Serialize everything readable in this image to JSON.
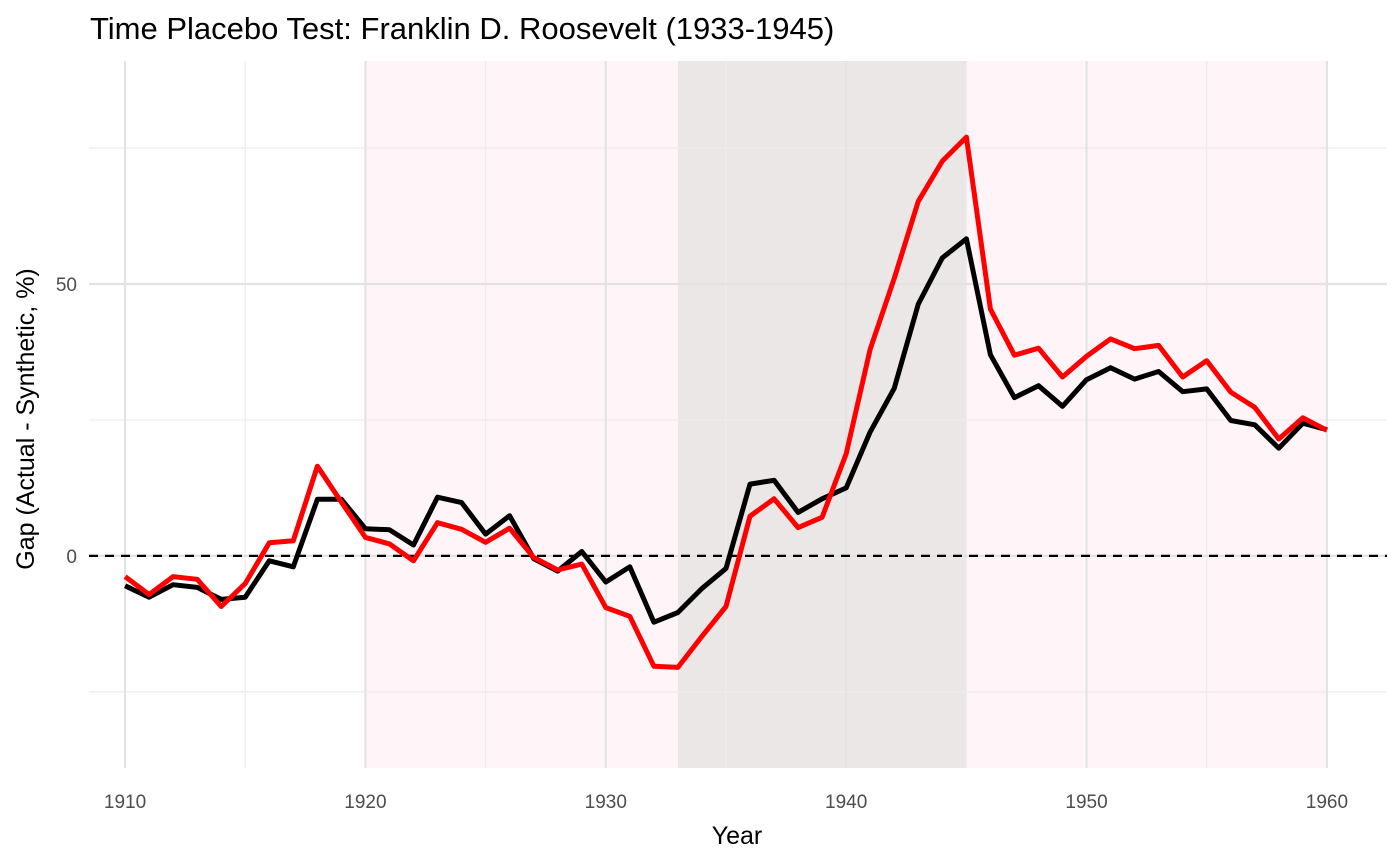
{
  "chart_data": {
    "type": "line",
    "title": "Time Placebo Test: Franklin D. Roosevelt (1933-1945)",
    "xlabel": "Year",
    "ylabel": "Gap (Actual - Synthetic, %)",
    "xlim": [
      1908.5,
      1962.5
    ],
    "ylim": [
      -39,
      91
    ],
    "x_ticks": [
      1910,
      1920,
      1930,
      1940,
      1950,
      1960
    ],
    "y_ticks": [
      0,
      50
    ],
    "grid": true,
    "reference_line": {
      "y": 0,
      "style": "dashed",
      "color": "#000000"
    },
    "shaded_regions": [
      {
        "from": 1920,
        "to": 1960,
        "color": "#fff5f8"
      },
      {
        "from": 1933,
        "to": 1945,
        "color": "#ebe7e7"
      }
    ],
    "x": [
      1910,
      1911,
      1912,
      1913,
      1914,
      1915,
      1916,
      1917,
      1918,
      1919,
      1920,
      1921,
      1922,
      1923,
      1924,
      1925,
      1926,
      1927,
      1928,
      1929,
      1930,
      1931,
      1932,
      1933,
      1934,
      1935,
      1936,
      1937,
      1938,
      1939,
      1940,
      1941,
      1942,
      1943,
      1944,
      1945,
      1946,
      1947,
      1948,
      1949,
      1950,
      1951,
      1952,
      1953,
      1954,
      1955,
      1956,
      1957,
      1958,
      1959,
      1960
    ],
    "series": [
      {
        "color": "#000000",
        "values": [
          -5.5,
          -7.6,
          -5.3,
          -5.8,
          -8.0,
          -7.6,
          -0.9,
          -2.0,
          10.4,
          10.4,
          5.0,
          4.8,
          2.0,
          10.8,
          9.8,
          4.0,
          7.4,
          -0.5,
          -2.8,
          0.8,
          -4.8,
          -2.0,
          -12.2,
          -10.4,
          -6.0,
          -2.3,
          13.2,
          13.9,
          8.0,
          10.5,
          12.5,
          22.8,
          30.8,
          46.3,
          54.8,
          58.3,
          37.0,
          29.1,
          31.3,
          27.5,
          32.4,
          34.6,
          32.5,
          33.9,
          30.2,
          30.7,
          24.9,
          24.1,
          19.8,
          24.4,
          23.2
        ]
      },
      {
        "color": "#ff0000",
        "values": [
          -3.8,
          -7.1,
          -3.8,
          -4.3,
          -9.3,
          -5.1,
          2.4,
          2.8,
          16.5,
          9.9,
          3.4,
          2.2,
          -0.9,
          6.1,
          4.9,
          2.5,
          5.1,
          -0.3,
          -2.6,
          -1.5,
          -9.5,
          -11.1,
          -20.3,
          -20.5,
          -14.8,
          -9.3,
          7.3,
          10.5,
          5.2,
          7.1,
          18.8,
          38.0,
          51.0,
          65.2,
          72.6,
          77.0,
          45.4,
          36.9,
          38.2,
          32.9,
          36.7,
          39.9,
          38.1,
          38.7,
          32.9,
          35.9,
          30.1,
          27.3,
          21.5,
          25.4,
          23.1
        ]
      }
    ]
  }
}
